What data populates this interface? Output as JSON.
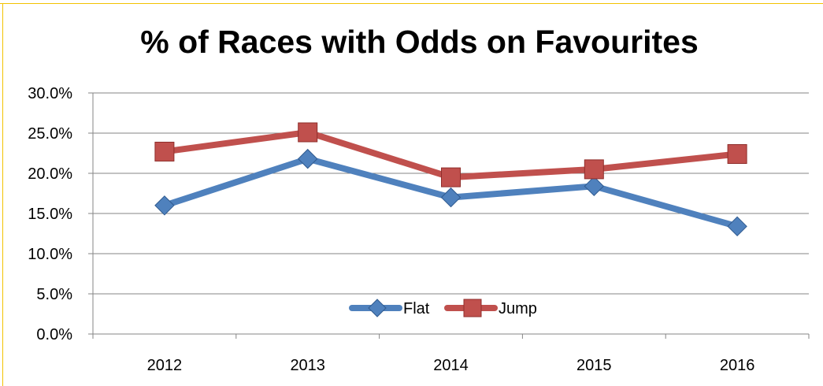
{
  "chart_data": {
    "type": "line",
    "title": "% of Races with Odds on Favourites",
    "xlabel": "",
    "ylabel": "",
    "categories": [
      "2012",
      "2013",
      "2014",
      "2015",
      "2016"
    ],
    "series": [
      {
        "name": "Flat",
        "values": [
          16.0,
          21.8,
          17.0,
          18.4,
          13.4
        ],
        "color": "#4f81bd",
        "marker": "diamond"
      },
      {
        "name": "Jump",
        "values": [
          22.7,
          25.1,
          19.5,
          20.5,
          22.4
        ],
        "color": "#c0504d",
        "marker": "square"
      }
    ],
    "ylim": [
      0,
      30
    ],
    "ytick_labels": [
      "0.0%",
      "5.0%",
      "10.0%",
      "15.0%",
      "20.0%",
      "25.0%",
      "30.0%"
    ],
    "grid": true,
    "legend_position": "bottom-center inside plot"
  }
}
